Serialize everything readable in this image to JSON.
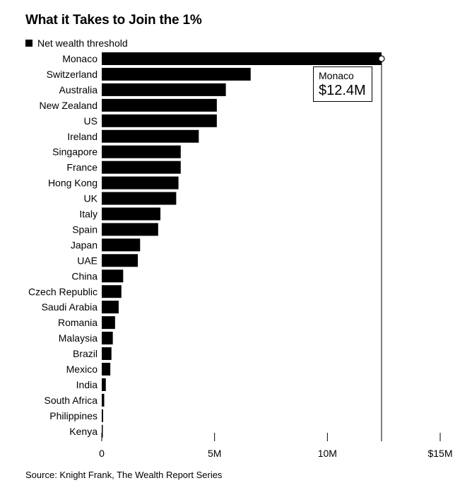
{
  "chart_data": {
    "type": "bar",
    "orientation": "horizontal",
    "title": "What it Takes to Join the 1%",
    "legend": [
      "Net wealth threshold"
    ],
    "source": "Source: Knight Frank, The Wealth Report Series",
    "categories": [
      "Monaco",
      "Switzerland",
      "Australia",
      "New Zealand",
      "US",
      "Ireland",
      "Singapore",
      "France",
      "Hong Kong",
      "UK",
      "Italy",
      "Spain",
      "Japan",
      "UAE",
      "China",
      "Czech Republic",
      "Saudi Arabia",
      "Romania",
      "Malaysia",
      "Brazil",
      "Mexico",
      "India",
      "South Africa",
      "Philippines",
      "Kenya"
    ],
    "series": [
      {
        "name": "Net wealth threshold",
        "values": [
          12.4,
          6.6,
          5.5,
          5.1,
          5.1,
          4.3,
          3.5,
          3.5,
          3.4,
          3.3,
          2.6,
          2.5,
          1.7,
          1.6,
          0.95,
          0.87,
          0.75,
          0.59,
          0.49,
          0.43,
          0.38,
          0.18,
          0.11,
          0.06,
          0.04
        ]
      }
    ],
    "x_tick_labels": [
      "0",
      "5M",
      "10M",
      "$15M"
    ],
    "x_ticks": [
      0,
      5,
      10,
      15
    ],
    "xlim": [
      0,
      15
    ],
    "grid": false,
    "annotation": {
      "category": "Monaco",
      "name": "Monaco",
      "value": "$12.4M"
    },
    "bar_color": "#000000"
  }
}
